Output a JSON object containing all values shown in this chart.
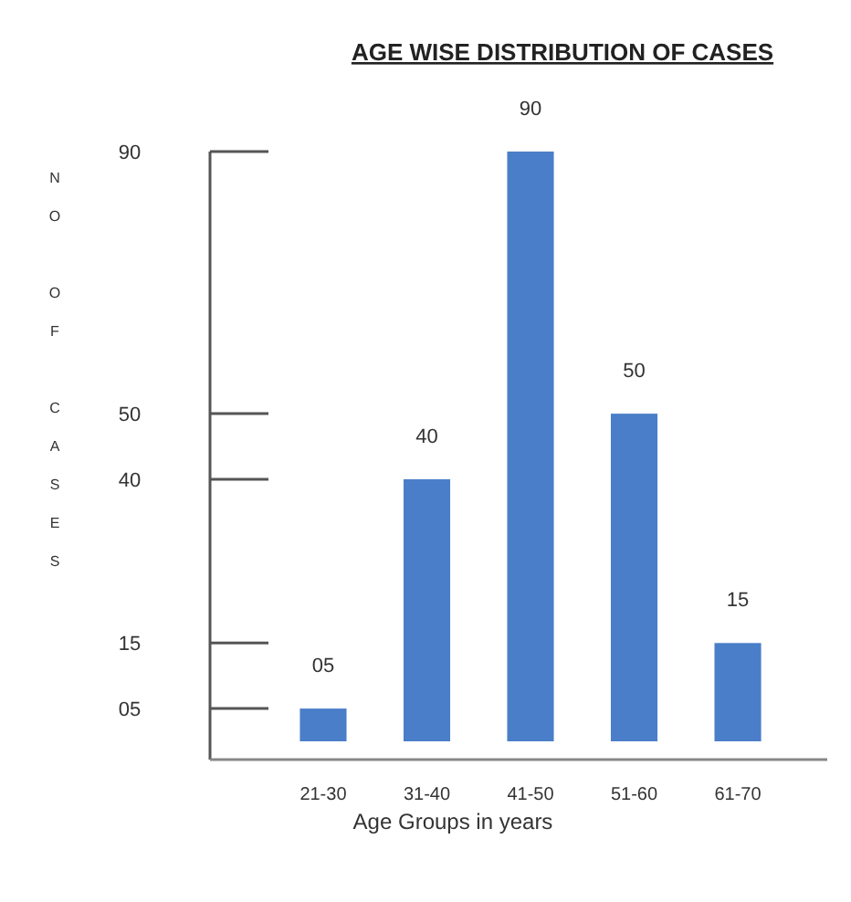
{
  "chart_data": {
    "type": "bar",
    "title": "AGE WISE DISTRIBUTION OF CASES",
    "xlabel": "Age Groups in years",
    "ylabel": "NO OF CASES",
    "categories": [
      "21-30",
      "31-40",
      "41-50",
      "51-60",
      "61-70"
    ],
    "values": [
      5,
      40,
      90,
      50,
      15
    ],
    "color": "#4a7ec8",
    "value_labels": [
      "05",
      "40",
      "90",
      "50",
      "15"
    ],
    "ylim": [
      0,
      90
    ],
    "yticks": [
      {
        "value": 5,
        "label": "05"
      },
      15,
      40,
      50,
      90
    ],
    "grid": false
  }
}
